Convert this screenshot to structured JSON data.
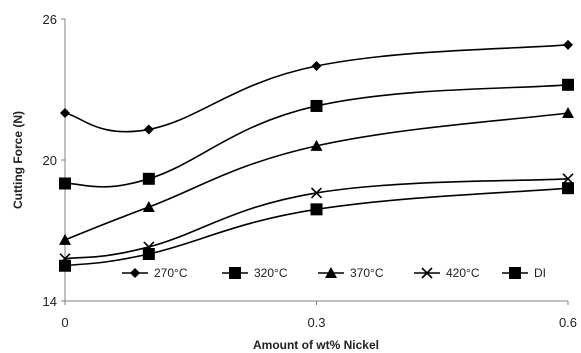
{
  "chart_data": {
    "type": "line",
    "title": "",
    "xlabel": "Amount of wt% Nickel",
    "ylabel": "Cutting Force (N)",
    "x": [
      0,
      0.1,
      0.3,
      0.6
    ],
    "x_ticks": [
      "0",
      "0.3",
      "0.6"
    ],
    "x_tick_values": [
      0,
      0.3,
      0.6
    ],
    "y_ticks": [
      "14",
      "20",
      "26"
    ],
    "y_tick_values": [
      14,
      20,
      26
    ],
    "xlim": [
      0,
      0.6
    ],
    "ylim": [
      14,
      26
    ],
    "grid": false,
    "legend_position": "bottom-inside",
    "smooth": true,
    "series": [
      {
        "name": "270°C",
        "marker": "diamond",
        "values": [
          22.0,
          21.3,
          24.0,
          24.9
        ]
      },
      {
        "name": "320°C",
        "marker": "square",
        "values": [
          19.0,
          19.2,
          22.3,
          23.2
        ]
      },
      {
        "name": "370°C",
        "marker": "triangle",
        "values": [
          16.6,
          18.0,
          20.6,
          22.0
        ]
      },
      {
        "name": "420°C",
        "marker": "x",
        "values": [
          15.8,
          16.3,
          18.6,
          19.2
        ]
      },
      {
        "name": "DI",
        "marker": "square",
        "values": [
          15.5,
          16.0,
          17.9,
          18.8
        ]
      }
    ],
    "colors": {
      "line": "#000000",
      "axis": "#808080"
    }
  }
}
